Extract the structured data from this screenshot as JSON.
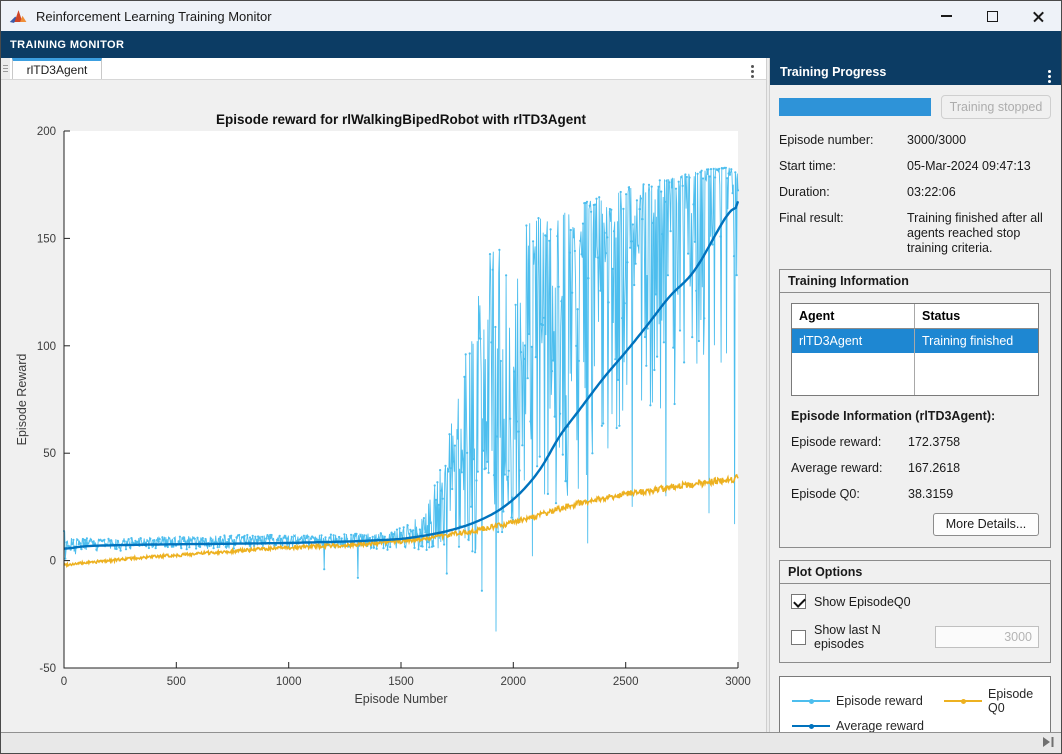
{
  "window": {
    "title": "Reinforcement Learning Training Monitor"
  },
  "toolstrip": {
    "tab_label": "TRAINING MONITOR"
  },
  "document_tab": {
    "label": "rlTD3Agent"
  },
  "progress_panel": {
    "title": "Training Progress",
    "progress_percent": 100,
    "stop_button_label": "Training stopped",
    "rows": [
      {
        "label": "Episode number:",
        "value": "3000/3000"
      },
      {
        "label": "Start time:",
        "value": "05-Mar-2024 09:47:13"
      },
      {
        "label": "Duration:",
        "value": "03:22:06"
      },
      {
        "label": "Final result:",
        "value": "Training finished after all agents reached stop training criteria."
      }
    ]
  },
  "training_info": {
    "title": "Training Information",
    "table": {
      "columns": [
        "Agent",
        "Status"
      ],
      "rows": [
        {
          "agent": "rlTD3Agent",
          "status": "Training finished",
          "selected": true
        }
      ]
    },
    "episode_info_title": "Episode Information (rlTD3Agent):",
    "fields": [
      {
        "label": "Episode reward:",
        "value": "172.3758"
      },
      {
        "label": "Average reward:",
        "value": "167.2618"
      },
      {
        "label": "Episode Q0:",
        "value": "38.3159"
      }
    ],
    "more_details_button": "More Details..."
  },
  "plot_options": {
    "title": "Plot Options",
    "show_episode_q0": {
      "label": "Show EpisodeQ0",
      "checked": true
    },
    "show_last_n": {
      "label": "Show last N episodes",
      "checked": false,
      "value": "3000"
    }
  },
  "legend": {
    "items": [
      {
        "label": "Episode reward",
        "color": "#4DBEEE"
      },
      {
        "label": "Average reward",
        "color": "#0072BD"
      },
      {
        "label": "Episode Q0",
        "color": "#EDB120"
      }
    ]
  },
  "colors": {
    "toolstrip_navy": "#0c3c64",
    "tab_accent": "#3c9fe0",
    "progress_blue": "#2e93d8",
    "selection_blue": "#1e87d2"
  },
  "chart_data": {
    "type": "line",
    "title": "Episode reward for rlWalkingBipedRobot with rlTD3Agent",
    "xlabel": "Episode Number",
    "ylabel": "Episode Reward",
    "xlim": [
      0,
      3000
    ],
    "ylim": [
      -50,
      200
    ],
    "xticks": [
      0,
      500,
      1000,
      1500,
      2000,
      2500,
      3000
    ],
    "yticks": [
      -50,
      0,
      50,
      100,
      150,
      200
    ],
    "grid": false,
    "legend_position": "separate-panel",
    "series": [
      {
        "name": "Episode reward",
        "color": "#4DBEEE",
        "style": "noisy",
        "step": 3,
        "seed": 1337,
        "final_value": 172.3758,
        "envelope": {
          "x": [
            0,
            40,
            150,
            400,
            800,
            1150,
            1450,
            1600,
            1700,
            1780,
            1850,
            1920,
            2000,
            2080,
            2160,
            2250,
            2350,
            2450,
            2550,
            2700,
            2850,
            2960,
            3000
          ],
          "hi": [
            17,
            11,
            10,
            11,
            12,
            12,
            13,
            22,
            50,
            95,
            130,
            150,
            152,
            158,
            162,
            165,
            168,
            172,
            175,
            178,
            182,
            183,
            180
          ],
          "lo": [
            -4,
            2,
            4,
            5,
            5.5,
            6,
            5,
            4,
            5,
            3,
            0,
            2,
            5,
            10,
            22,
            30,
            38,
            45,
            55,
            65,
            80,
            95,
            110
          ],
          "bias": [
            1.1,
            1.2,
            1.4,
            1.4,
            1.4,
            1.4,
            1.3,
            1.1,
            1.0,
            0.95,
            0.95,
            1.0,
            1.2,
            1.5,
            1.8,
            2.0,
            2.2,
            2.4,
            2.7,
            3.0,
            3.2,
            3.2,
            3.2
          ]
        },
        "dip_spikes": [
          [
            1157,
            -4
          ],
          [
            1308,
            -8
          ],
          [
            1705,
            -6
          ],
          [
            1860,
            -14
          ],
          [
            1923,
            -33
          ],
          [
            2085,
            2
          ],
          [
            2330,
            8
          ],
          [
            2530,
            25
          ],
          [
            2680,
            30
          ],
          [
            2870,
            22
          ],
          [
            2985,
            17
          ]
        ]
      },
      {
        "name": "Average reward",
        "color": "#0072BD",
        "style": "smooth",
        "line_width": 2.4,
        "final_value": 167.2618,
        "keypoints": [
          [
            0,
            5
          ],
          [
            60,
            6.5
          ],
          [
            150,
            7
          ],
          [
            400,
            7.5
          ],
          [
            700,
            7.8
          ],
          [
            1000,
            8.2
          ],
          [
            1300,
            9
          ],
          [
            1500,
            10
          ],
          [
            1600,
            11.5
          ],
          [
            1700,
            13.5
          ],
          [
            1800,
            16.5
          ],
          [
            1900,
            21
          ],
          [
            1960,
            25
          ],
          [
            2020,
            30
          ],
          [
            2080,
            37
          ],
          [
            2140,
            45
          ],
          [
            2200,
            58
          ],
          [
            2250,
            64
          ],
          [
            2300,
            71
          ],
          [
            2400,
            85
          ],
          [
            2500,
            97
          ],
          [
            2600,
            110
          ],
          [
            2700,
            124
          ],
          [
            2790,
            132
          ],
          [
            2850,
            142
          ],
          [
            2900,
            152
          ],
          [
            2950,
            161
          ],
          [
            2980,
            165.5
          ],
          [
            3000,
            167.2618
          ]
        ]
      },
      {
        "name": "Episode Q0",
        "color": "#EDB120",
        "style": "jitter",
        "step": 3,
        "seed": 99,
        "final_value": 38.3159,
        "amp": [
          [
            0,
            0.6
          ],
          [
            1200,
            0.9
          ],
          [
            2200,
            1.3
          ],
          [
            3000,
            1.7
          ]
        ],
        "keypoints": [
          [
            0,
            -2
          ],
          [
            150,
            -0.5
          ],
          [
            300,
            1
          ],
          [
            500,
            2.5
          ],
          [
            700,
            4
          ],
          [
            900,
            5.5
          ],
          [
            1100,
            6.5
          ],
          [
            1300,
            7.5
          ],
          [
            1500,
            9
          ],
          [
            1650,
            11
          ],
          [
            1800,
            13.5
          ],
          [
            1950,
            16.5
          ],
          [
            2100,
            20.5
          ],
          [
            2200,
            24
          ],
          [
            2300,
            27
          ],
          [
            2400,
            29
          ],
          [
            2500,
            31
          ],
          [
            2600,
            32.5
          ],
          [
            2700,
            34
          ],
          [
            2800,
            35.5
          ],
          [
            2900,
            37
          ],
          [
            3000,
            38.3159
          ]
        ]
      }
    ]
  }
}
